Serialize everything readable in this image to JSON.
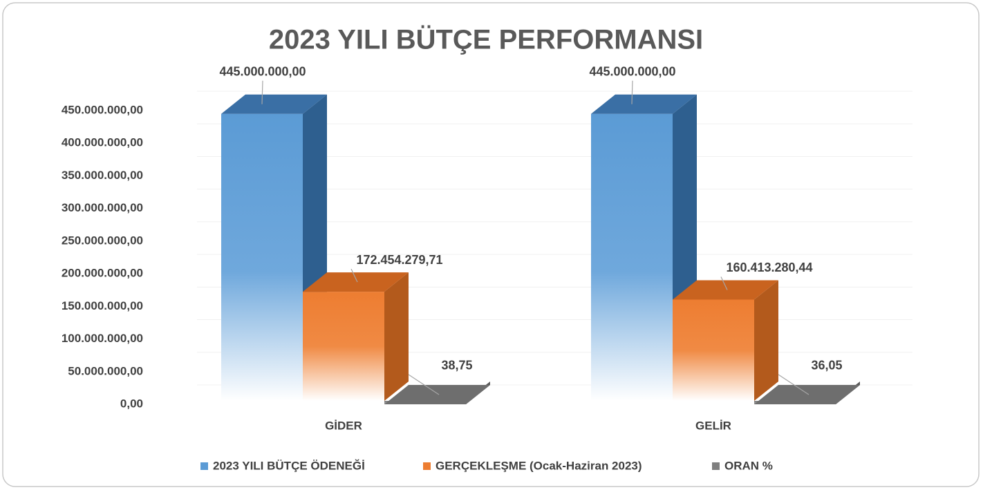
{
  "chart_data": {
    "type": "bar3d",
    "title": "2023 YILI BÜTÇE PERFORMANSI",
    "categories": [
      "GİDER",
      "GELİR"
    ],
    "series": [
      {
        "name": "2023 YILI BÜTÇE ÖDENEĞİ",
        "color": "#5b9bd5",
        "values": [
          445000000,
          445000000
        ],
        "value_labels": [
          "445.000.000,00",
          "445.000.000,00"
        ]
      },
      {
        "name": "GERÇEKLEŞME (Ocak-Haziran 2023)",
        "color": "#ed7d31",
        "values": [
          172454279.71,
          160413280.44
        ],
        "value_labels": [
          "172.454.279,71",
          "160.413.280,44"
        ]
      },
      {
        "name": "ORAN %",
        "color": "#7f7f7f",
        "values": [
          38.75,
          36.05
        ],
        "value_labels": [
          "38,75",
          "36,05"
        ]
      }
    ],
    "ylim": [
      0,
      450000000
    ],
    "yticks": [
      {
        "value": 0,
        "label": "0,00"
      },
      {
        "value": 50000000,
        "label": "50.000.000,00"
      },
      {
        "value": 100000000,
        "label": "100.000.000,00"
      },
      {
        "value": 150000000,
        "label": "150.000.000,00"
      },
      {
        "value": 200000000,
        "label": "200.000.000,00"
      },
      {
        "value": 250000000,
        "label": "250.000.000,00"
      },
      {
        "value": 300000000,
        "label": "300.000.000,00"
      },
      {
        "value": 350000000,
        "label": "350.000.000,00"
      },
      {
        "value": 400000000,
        "label": "400.000.000,00"
      },
      {
        "value": 450000000,
        "label": "450.000.000,00"
      }
    ],
    "grid": true,
    "legend": "bottom"
  }
}
